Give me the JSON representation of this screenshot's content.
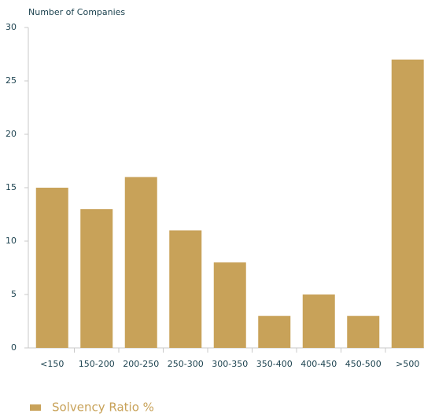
{
  "chart_data": {
    "type": "bar",
    "y_label": "Number of Companies",
    "categories": [
      "<150",
      "150-200",
      "200-250",
      "250-300",
      "300-350",
      "350-400",
      "400-450",
      "450-500",
      ">500"
    ],
    "series": [
      {
        "name": "Solvency Ratio %",
        "color": "#c8a259",
        "values": [
          15,
          13,
          16,
          11,
          8,
          3,
          5,
          3,
          27
        ]
      }
    ],
    "ylim": [
      0,
      30
    ],
    "yticks": [
      0,
      5,
      10,
      15,
      20,
      25,
      30
    ],
    "grid": false,
    "legend": "bottom-left"
  }
}
